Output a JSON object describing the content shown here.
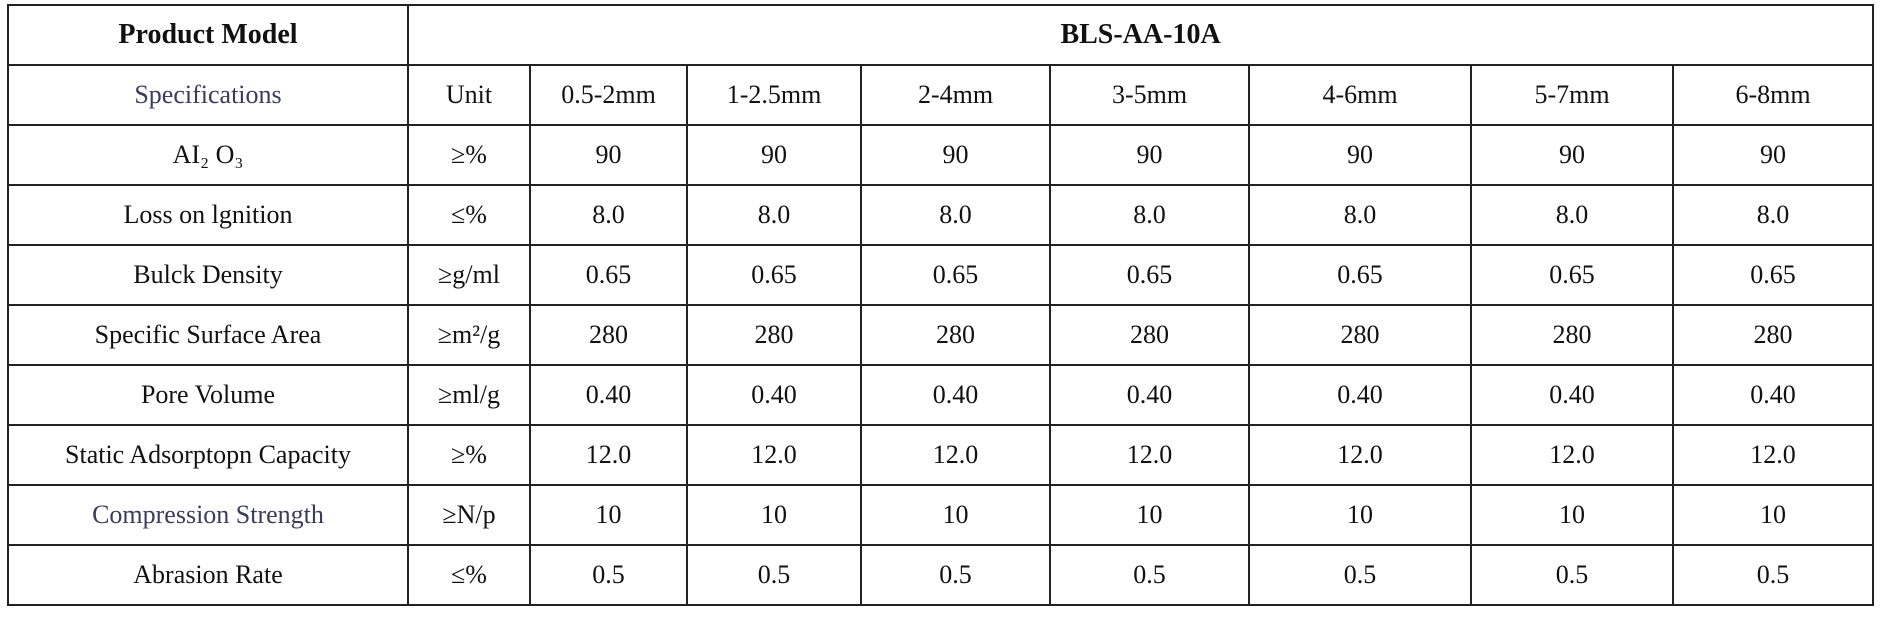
{
  "header": {
    "label": "Product Model",
    "model": "BLS-AA-10A"
  },
  "table": {
    "columns": [
      "Specifications",
      "Unit",
      "0.5-2mm",
      "1-2.5mm",
      "2-4mm",
      "3-5mm",
      "4-6mm",
      "5-7mm",
      "6-8mm"
    ],
    "rows": [
      [
        "AI₂  O₃",
        "≥%",
        "90",
        "90",
        "90",
        "90",
        "90",
        "90",
        "90"
      ],
      [
        "Loss on lgnition",
        "≤%",
        "8.0",
        "8.0",
        "8.0",
        "8.0",
        "8.0",
        "8.0",
        "8.0"
      ],
      [
        "Bulck Density",
        "≥g/ml",
        "0.65",
        "0.65",
        "0.65",
        "0.65",
        "0.65",
        "0.65",
        "0.65"
      ],
      [
        "Specific Surface Area",
        "≥m²/g",
        "280",
        "280",
        "280",
        "280",
        "280",
        "280",
        "280"
      ],
      [
        "Pore Volume",
        "≥ml/g",
        "0.40",
        "0.40",
        "0.40",
        "0.40",
        "0.40",
        "0.40",
        "0.40"
      ],
      [
        "Static Adsorptopn Capacity",
        "≥%",
        "12.0",
        "12.0",
        "12.0",
        "12.0",
        "12.0",
        "12.0",
        "12.0"
      ],
      [
        "Compression Strength",
        "≥N/p",
        "10",
        "10",
        "10",
        "10",
        "10",
        "10",
        "10"
      ],
      [
        "Abrasion Rate",
        "≤%",
        "0.5",
        "0.5",
        "0.5",
        "0.5",
        "0.5",
        "0.5",
        "0.5"
      ]
    ]
  }
}
